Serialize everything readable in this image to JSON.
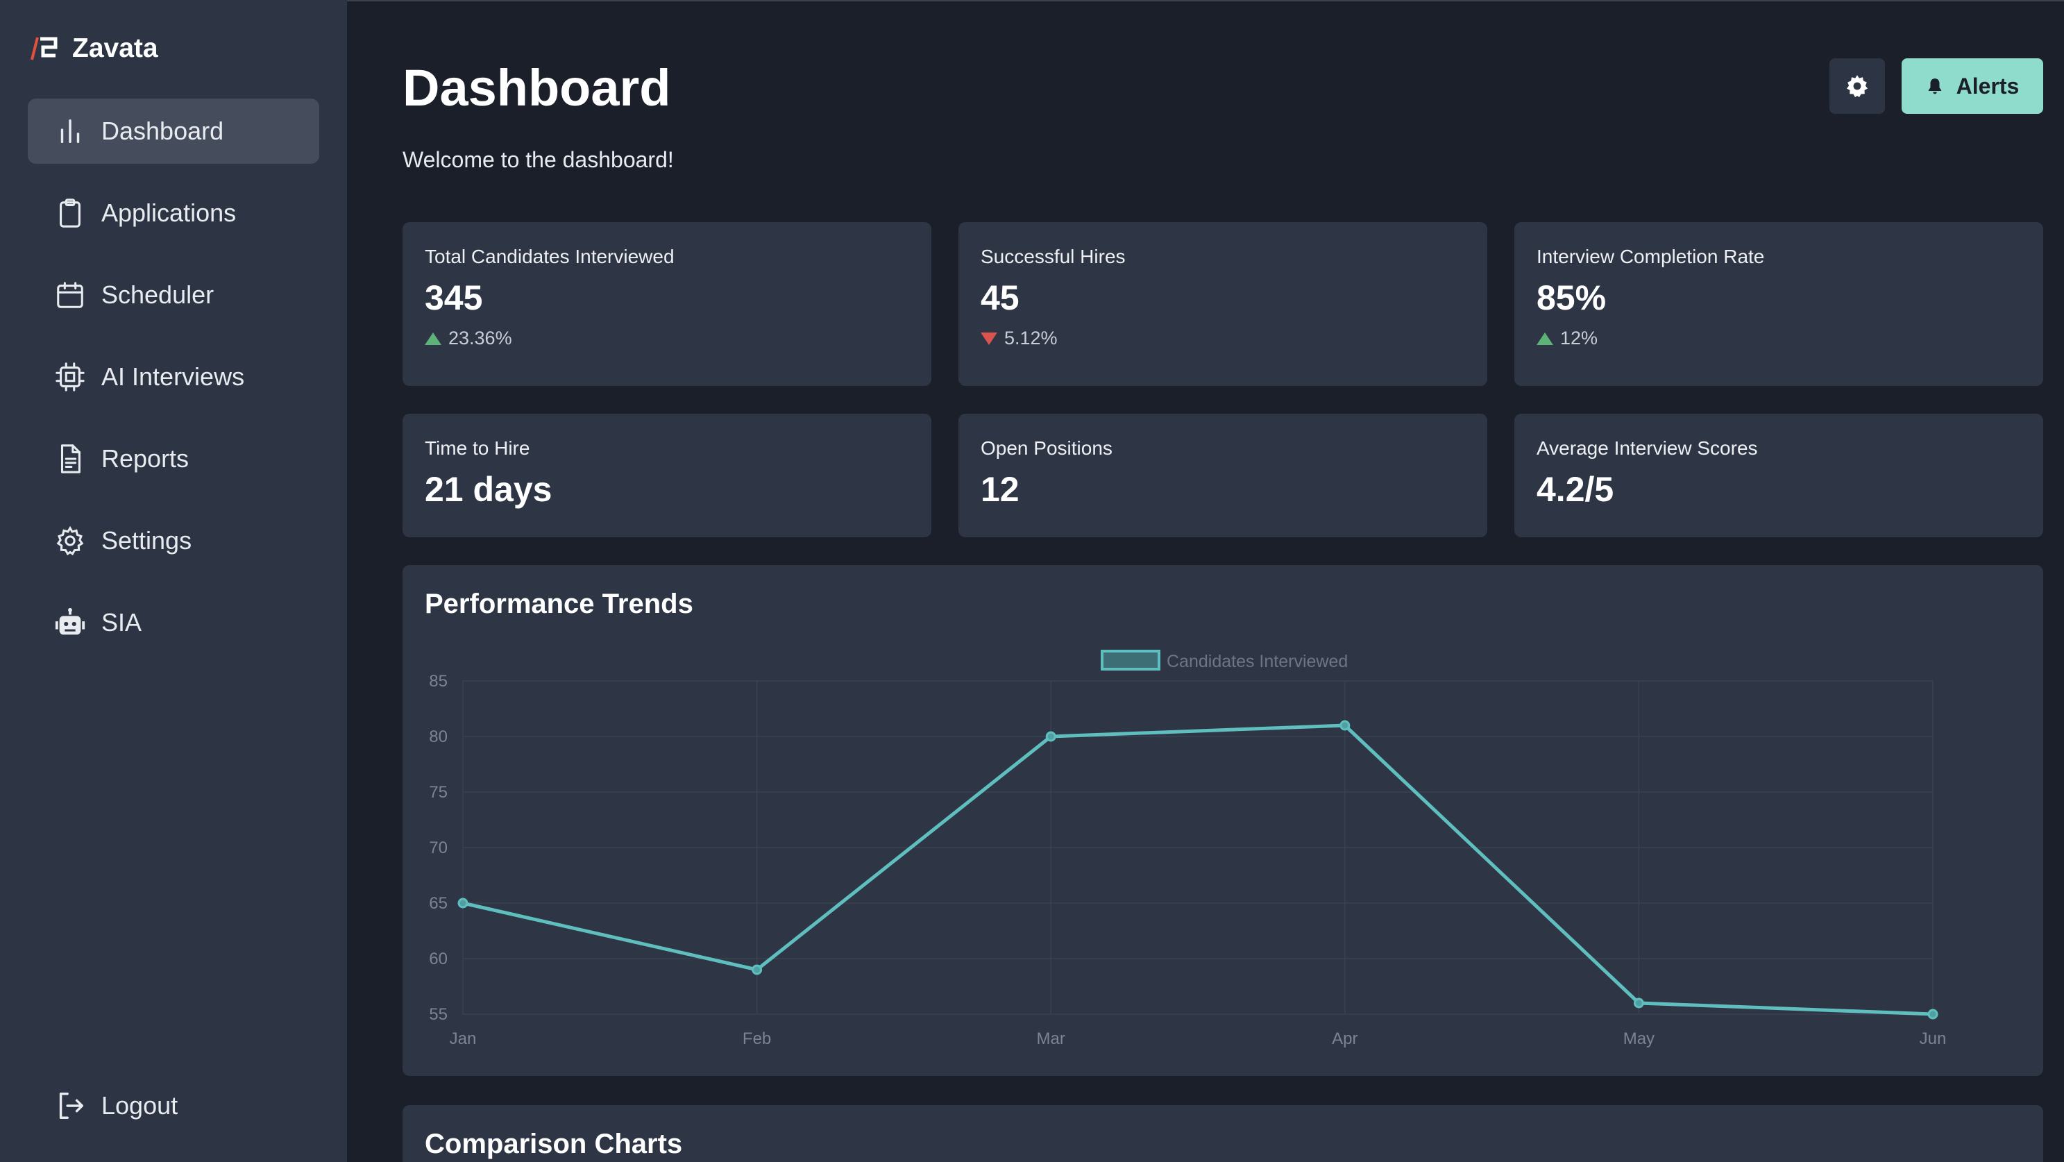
{
  "sidebar": {
    "brand": "Zavata",
    "items": [
      {
        "label": "Dashboard",
        "icon": "bar-chart-icon",
        "active": true
      },
      {
        "label": "Applications",
        "icon": "clipboard-icon"
      },
      {
        "label": "Scheduler",
        "icon": "calendar-icon"
      },
      {
        "label": "AI Interviews",
        "icon": "cpu-chip-icon"
      },
      {
        "label": "Reports",
        "icon": "document-icon"
      },
      {
        "label": "Settings",
        "icon": "gear-icon"
      },
      {
        "label": "SIA",
        "icon": "robot-icon"
      }
    ],
    "logout": {
      "label": "Logout",
      "icon": "logout-icon"
    }
  },
  "header": {
    "title": "Dashboard",
    "welcome": "Welcome to the dashboard!",
    "settings_icon": "gear-icon",
    "alerts_label": "Alerts",
    "alerts_icon": "bell-icon"
  },
  "stats": [
    {
      "title": "Total Candidates Interviewed",
      "value": "345",
      "change": "23.36%",
      "direction": "up"
    },
    {
      "title": "Successful Hires",
      "value": "45",
      "change": "5.12%",
      "direction": "down"
    },
    {
      "title": "Interview Completion Rate",
      "value": "85%",
      "change": "12%",
      "direction": "up"
    },
    {
      "title": "Time to Hire",
      "value": "21 days"
    },
    {
      "title": "Open Positions",
      "value": "12"
    },
    {
      "title": "Average Interview Scores",
      "value": "4.2/5"
    }
  ],
  "colors": {
    "accent": "#8fdccd",
    "line": "#5fbfbf",
    "up": "#5db277",
    "down": "#d9534f"
  },
  "performance": {
    "title": "Performance Trends"
  },
  "comparison": {
    "title": "Comparison Charts"
  },
  "chart_data": {
    "type": "line",
    "title": "Performance Trends",
    "categories": [
      "Jan",
      "Feb",
      "Mar",
      "Apr",
      "May",
      "Jun"
    ],
    "series": [
      {
        "name": "Candidates Interviewed",
        "values": [
          65,
          59,
          80,
          81,
          56,
          55
        ]
      }
    ],
    "yticks": [
      55,
      60,
      65,
      70,
      75,
      80,
      85
    ],
    "ylim": [
      55,
      85
    ],
    "grid": true,
    "legend": "top-center",
    "xlabel": "",
    "ylabel": ""
  }
}
